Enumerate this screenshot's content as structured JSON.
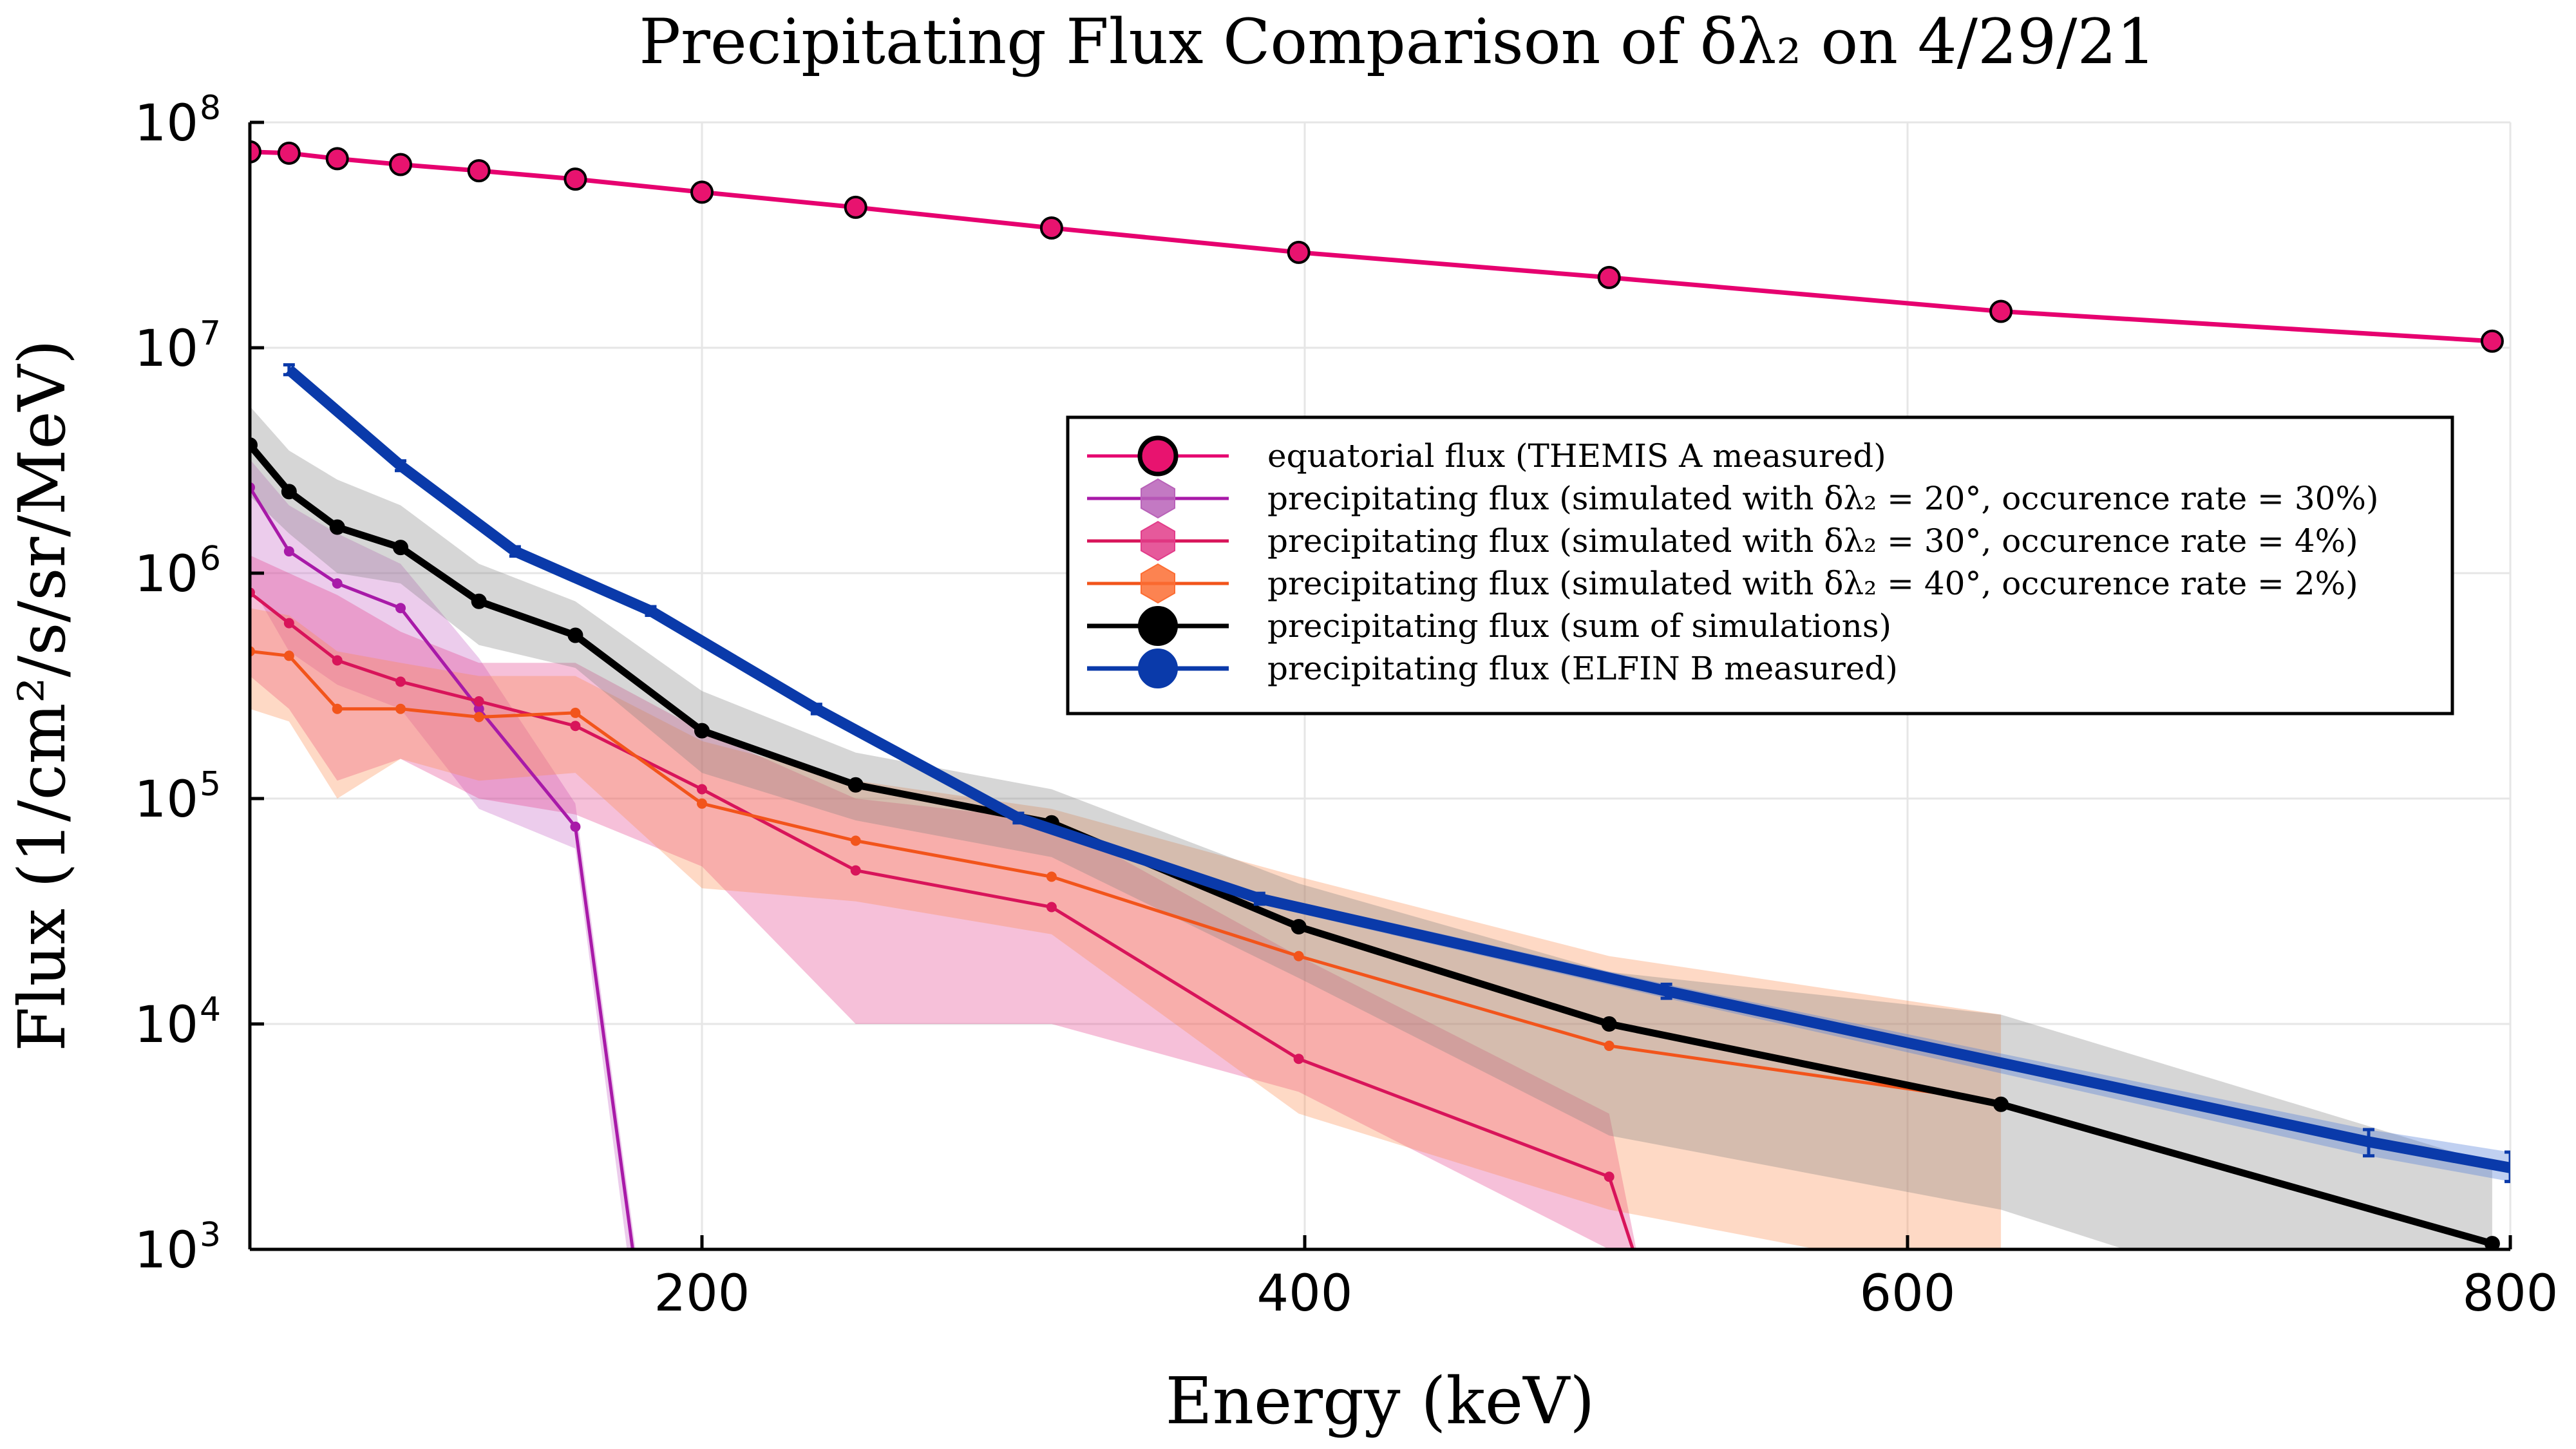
{
  "chart_data": {
    "type": "line",
    "title": "Precipitating Flux Comparison of δλ₂ on 4/29/21",
    "xlabel": "Energy (keV)",
    "ylabel": "Flux (1/cm²/s/sr/MeV)",
    "xlim": [
      50,
      800
    ],
    "ylim": [
      1000,
      100000000
    ],
    "y_scale": "log",
    "grid": true,
    "legend_position": "right",
    "x_ticks": [
      {
        "value": 200,
        "label": "200"
      },
      {
        "value": 400,
        "label": "400"
      },
      {
        "value": 600,
        "label": "600"
      },
      {
        "value": 800,
        "label": "800"
      }
    ],
    "y_ticks": [
      {
        "value": 1000,
        "base": "10",
        "exp": "3"
      },
      {
        "value": 10000,
        "base": "10",
        "exp": "4"
      },
      {
        "value": 100000,
        "base": "10",
        "exp": "5"
      },
      {
        "value": 1000000,
        "base": "10",
        "exp": "6"
      },
      {
        "value": 10000000,
        "base": "10",
        "exp": "7"
      },
      {
        "value": 100000000,
        "base": "10",
        "exp": "8"
      }
    ],
    "series": [
      {
        "name": "equatorial flux (THEMIS A measured)",
        "color": "#e6006f",
        "marker_color": "#e8136f",
        "x": [
          50,
          63,
          79,
          100,
          126,
          158,
          200,
          251,
          316,
          398,
          501,
          631,
          794
        ],
        "y": [
          74000000,
          73000000,
          69000000,
          65000000,
          61000000,
          56000000,
          49000000,
          42000000,
          34000000,
          26500000,
          20500000,
          14500000,
          10700000
        ]
      },
      {
        "name": "precipitating flux (simulated with δλ₂ = 20°, occurence rate = 30%)",
        "color": "#a81aa8",
        "band_color": "#c45fc4",
        "x": [
          50,
          63,
          79,
          100,
          126,
          158,
          178
        ],
        "y": [
          2400000,
          1250000,
          900000,
          700000,
          250000,
          75000,
          800
        ],
        "band_low": [
          900000,
          450000,
          320000,
          250000,
          90000,
          60000,
          500
        ],
        "band_high": [
          3200000,
          2000000,
          1500000,
          1100000,
          420000,
          95000,
          1000
        ]
      },
      {
        "name": "precipitating flux (simulated with δλ₂ = 30°, occurence rate = 4%)",
        "color": "#d8145a",
        "band_color": "#e23c8a",
        "x": [
          50,
          63,
          79,
          100,
          126,
          158,
          200,
          251,
          316,
          398,
          501,
          510
        ],
        "y": [
          820000,
          600000,
          410000,
          330000,
          270000,
          210000,
          110000,
          48000,
          33000,
          7000,
          2100,
          900
        ],
        "band_low": [
          350000,
          250000,
          120000,
          150000,
          100000,
          85000,
          50000,
          10000,
          10000,
          5000,
          1000,
          800
        ],
        "band_high": [
          1200000,
          1000000,
          800000,
          550000,
          400000,
          400000,
          200000,
          100000,
          80000,
          20000,
          4000,
          1000
        ]
      },
      {
        "name": "precipitating flux (simulated with δλ₂ = 40°, occurence rate = 2%)",
        "color": "#f2541b",
        "band_color": "#fc8a4a",
        "x": [
          50,
          63,
          79,
          100,
          126,
          158,
          200,
          251,
          316,
          398,
          501,
          631
        ],
        "y": [
          450000,
          430000,
          250000,
          250000,
          230000,
          240000,
          95000,
          65000,
          45000,
          20000,
          8000,
          4500
        ],
        "band_low": [
          250000,
          220000,
          100000,
          150000,
          120000,
          130000,
          40000,
          35000,
          25000,
          4000,
          1500,
          700
        ],
        "band_high": [
          700000,
          650000,
          450000,
          400000,
          350000,
          350000,
          180000,
          120000,
          90000,
          45000,
          20000,
          11000
        ]
      },
      {
        "name": "precipitating flux (sum of simulations)",
        "color": "#000000",
        "band_color": "#808080",
        "x": [
          50,
          63,
          79,
          100,
          126,
          158,
          200,
          251,
          316,
          398,
          501,
          631,
          794
        ],
        "y": [
          3700000,
          2300000,
          1600000,
          1300000,
          750000,
          530000,
          200000,
          115000,
          78000,
          27000,
          10000,
          4400,
          1060
        ],
        "band_low": [
          2200000,
          1500000,
          1000000,
          900000,
          480000,
          380000,
          130000,
          80000,
          55000,
          16000,
          3200,
          1500,
          300
        ],
        "band_high": [
          5500000,
          3500000,
          2600000,
          2000000,
          1100000,
          750000,
          300000,
          160000,
          110000,
          42000,
          17000,
          11000,
          2400
        ]
      },
      {
        "name": "precipitating flux (ELFIN B measured)",
        "color": "#0a3aaa",
        "band_color": "#4a78d6",
        "x": [
          63,
          100,
          138,
          183,
          238,
          305,
          385,
          520,
          753,
          800
        ],
        "y": [
          8000000,
          3000000,
          1250000,
          680000,
          250000,
          82000,
          36000,
          14000,
          3000,
          2300
        ],
        "band_low": [
          7600000,
          2850000,
          1190000,
          650000,
          238000,
          78000,
          34000,
          13000,
          2600,
          2000
        ],
        "band_high": [
          8400000,
          3150000,
          1310000,
          710000,
          262000,
          86000,
          38000,
          15000,
          3400,
          2700
        ]
      }
    ]
  }
}
